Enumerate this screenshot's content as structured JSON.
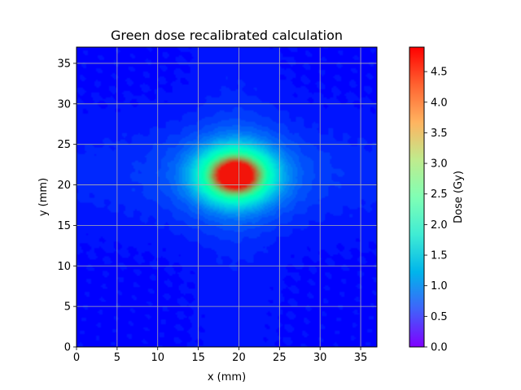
{
  "chart_data": {
    "type": "heatmap",
    "title": "Green dose recalibrated calculation",
    "xlabel": "x (mm)",
    "ylabel": "y (mm)",
    "xlim": [
      0,
      37
    ],
    "ylim": [
      0,
      37
    ],
    "x_ticks": [
      0,
      5,
      10,
      15,
      20,
      25,
      30,
      35
    ],
    "y_ticks": [
      0,
      5,
      10,
      15,
      20,
      25,
      30,
      35
    ],
    "grid": true,
    "colormap": "rainbow",
    "colorbar": {
      "label": "Dose (Gy)",
      "min": 0.0,
      "max": 4.9,
      "ticks": [
        "0.0",
        "0.5",
        "1.0",
        "1.5",
        "2.0",
        "2.5",
        "3.0",
        "3.5",
        "4.0",
        "4.5"
      ]
    },
    "dose_distribution": {
      "peak_center_mm": [
        19.6,
        21.2
      ],
      "peak_dose_gy": 4.8,
      "core_sigma_mm": [
        2.6,
        1.9
      ],
      "background_dose_gy": 0.1,
      "lateral_tail_dose_gy": 0.35
    }
  }
}
